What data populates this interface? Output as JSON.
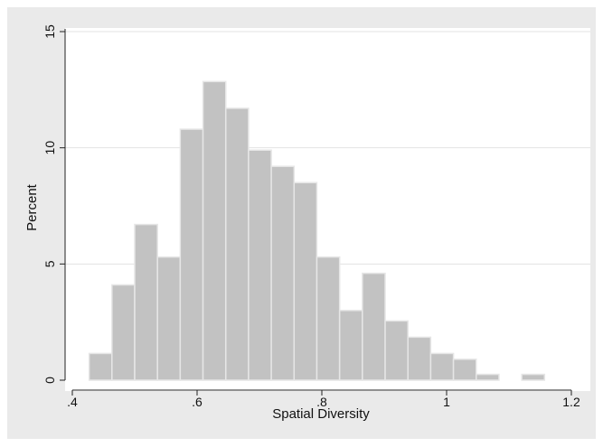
{
  "chart_data": {
    "type": "bar",
    "subtype": "histogram",
    "xlabel": "Spatial Diversity",
    "ylabel": "Percent",
    "xlim": [
      0.4,
      1.2
    ],
    "ylim": [
      0,
      15
    ],
    "x_ticks": [
      0.4,
      0.6,
      0.8,
      1.0,
      1.2
    ],
    "x_tick_labels": [
      ".4",
      ".6",
      ".8",
      "1",
      "1.2"
    ],
    "y_ticks": [
      0,
      5,
      10,
      15
    ],
    "y_tick_labels": [
      "0",
      "5",
      "10",
      "15"
    ],
    "bin_width": 0.0365,
    "bin_starts": [
      0.427,
      0.4635,
      0.5,
      0.5365,
      0.573,
      0.6095,
      0.646,
      0.6825,
      0.719,
      0.7555,
      0.792,
      0.8285,
      0.865,
      0.9015,
      0.938,
      0.9745,
      1.011,
      1.0475,
      1.084,
      1.1205
    ],
    "values": [
      1.15,
      4.1,
      6.7,
      5.3,
      10.8,
      12.85,
      11.7,
      9.9,
      9.2,
      8.5,
      5.3,
      3.0,
      4.6,
      2.55,
      1.85,
      1.15,
      0.9,
      0.25,
      0,
      0.25
    ],
    "grid": "horizontal",
    "colors": {
      "bar_fill": "#c2c2c2",
      "bar_stroke": "#e6e6e6",
      "plot_background": "#ffffff",
      "outer_background": "#eaeaea",
      "gridline": "#e3e3e3",
      "axis": "#222222"
    }
  }
}
